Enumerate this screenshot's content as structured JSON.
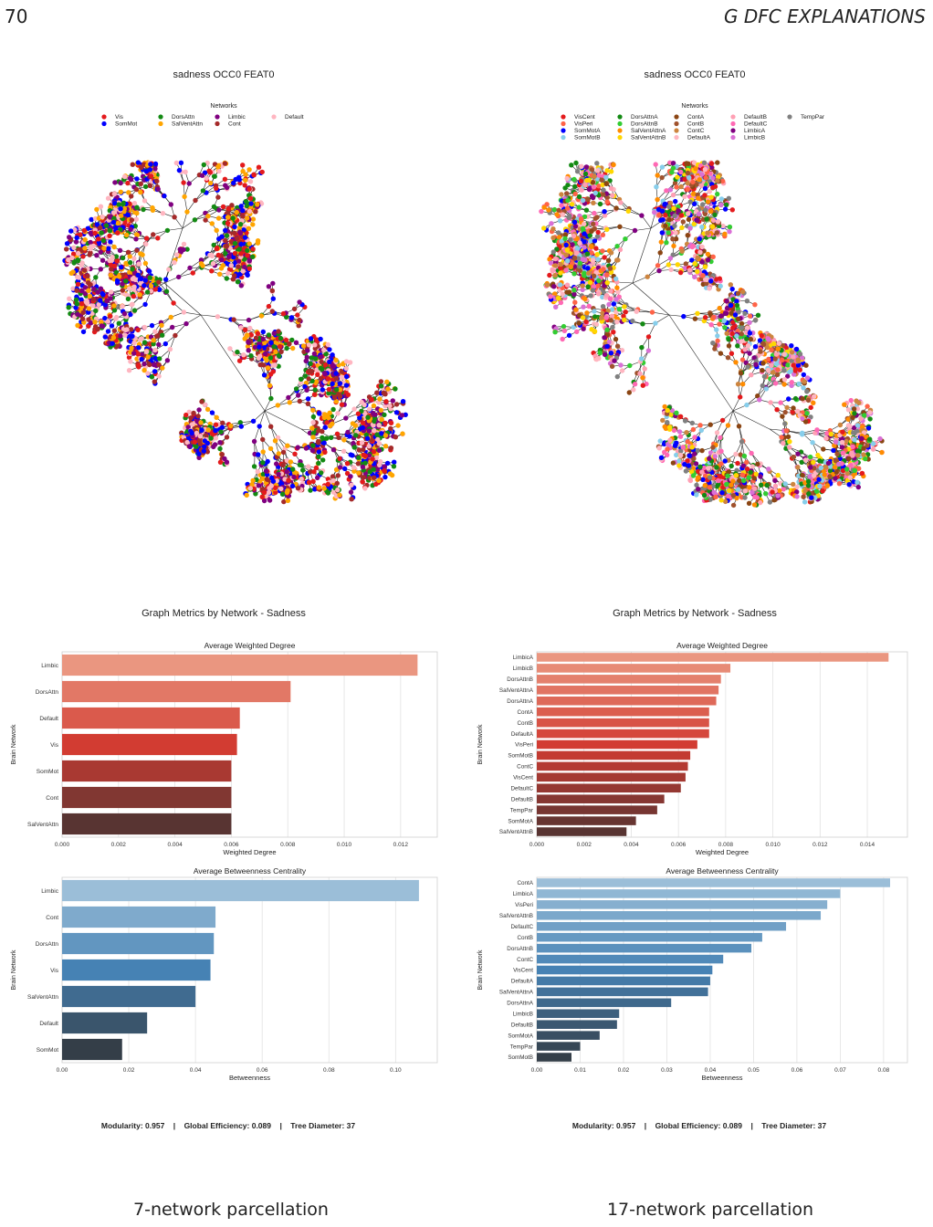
{
  "header": {
    "page_number": "70",
    "section": "G   DFC EXPLANATIONS"
  },
  "panels": [
    {
      "id": "left",
      "tree_title": "sadness OCC0 FEAT0",
      "legend_title": "Networks",
      "legend": [
        {
          "name": "Vis",
          "color": "#e41a1c"
        },
        {
          "name": "SomMot",
          "color": "#0000ff"
        },
        {
          "name": "DorsAttn",
          "color": "#138a13"
        },
        {
          "name": "SalVentAttn",
          "color": "#ffa500"
        },
        {
          "name": "Limbic",
          "color": "#800080"
        },
        {
          "name": "Cont",
          "color": "#a52a2a"
        },
        {
          "name": "Default",
          "color": "#ffb6c1"
        }
      ],
      "metrics_title": "Graph Metrics by Network - Sadness",
      "metrics_footer": "Modularity: 0.957    |    Global Efficiency: 0.089    |    Tree Diameter: 37",
      "caption": "7-network parcellation"
    },
    {
      "id": "right",
      "tree_title": "sadness OCC0 FEAT0",
      "legend_title": "Networks",
      "legend": [
        {
          "name": "VisCent",
          "color": "#e41a1c"
        },
        {
          "name": "VisPeri",
          "color": "#ff6347"
        },
        {
          "name": "SomMotA",
          "color": "#0000ff"
        },
        {
          "name": "SomMotB",
          "color": "#87ceeb"
        },
        {
          "name": "DorsAttnA",
          "color": "#138a13"
        },
        {
          "name": "DorsAttnB",
          "color": "#32cd32"
        },
        {
          "name": "SalVentAttnA",
          "color": "#ff8c00"
        },
        {
          "name": "SalVentAttnB",
          "color": "#ffd700"
        },
        {
          "name": "ContA",
          "color": "#8b4513"
        },
        {
          "name": "ContB",
          "color": "#a0522d"
        },
        {
          "name": "ContC",
          "color": "#cd853f"
        },
        {
          "name": "DefaultA",
          "color": "#ffb6c1"
        },
        {
          "name": "DefaultB",
          "color": "#ffa0b4"
        },
        {
          "name": "DefaultC",
          "color": "#ff69b4"
        },
        {
          "name": "LimbicA",
          "color": "#800080"
        },
        {
          "name": "LimbicB",
          "color": "#da70d6"
        },
        {
          "name": "TempPar",
          "color": "#808080"
        }
      ],
      "metrics_title": "Graph Metrics by Network - Sadness",
      "metrics_footer": "Modularity: 0.957    |    Global Efficiency: 0.089    |    Tree Diameter: 37",
      "caption": "17-network parcellation"
    }
  ],
  "chart_data": [
    {
      "type": "bar",
      "orientation": "horizontal",
      "title": "Average Weighted Degree",
      "xlabel": "Weighted Degree",
      "ylabel": "Brain Network",
      "categories": [
        "Limbic",
        "DorsAttn",
        "Default",
        "Vis",
        "SomMot",
        "Cont",
        "SalVentAttn"
      ],
      "values": [
        0.0126,
        0.0081,
        0.0063,
        0.0062,
        0.006,
        0.006,
        0.006
      ],
      "xlim": [
        0,
        0.0133
      ],
      "xticks": [
        "0.000",
        "0.002",
        "0.004",
        "0.006",
        "0.008",
        "0.010",
        "0.012"
      ],
      "palette": "red"
    },
    {
      "type": "bar",
      "orientation": "horizontal",
      "title": "Average Betweenness Centrality",
      "xlabel": "Betweenness",
      "ylabel": "Brain Network",
      "categories": [
        "Limbic",
        "Cont",
        "DorsAttn",
        "Vis",
        "SalVentAttn",
        "Default",
        "SomMot"
      ],
      "values": [
        0.107,
        0.046,
        0.0455,
        0.0445,
        0.04,
        0.0255,
        0.018
      ],
      "xlim": [
        0,
        0.1125
      ],
      "xticks": [
        "0.00",
        "0.02",
        "0.04",
        "0.06",
        "0.08",
        "0.10"
      ],
      "palette": "blue"
    },
    {
      "type": "bar",
      "orientation": "horizontal",
      "title": "Average Weighted Degree",
      "xlabel": "Weighted Degree",
      "ylabel": "Brain Network",
      "categories": [
        "LimbicA",
        "LimbicB",
        "DorsAttnB",
        "SalVentAttnA",
        "DorsAttnA",
        "ContA",
        "ContB",
        "DefaultA",
        "VisPeri",
        "SomMotB",
        "ContC",
        "VisCent",
        "DefaultC",
        "DefaultB",
        "TempPar",
        "SomMotA",
        "SalVentAttnB"
      ],
      "values": [
        0.0149,
        0.0082,
        0.0078,
        0.0077,
        0.0076,
        0.0073,
        0.0073,
        0.0073,
        0.0068,
        0.0065,
        0.0064,
        0.0063,
        0.0061,
        0.0054,
        0.0051,
        0.0042,
        0.0038
      ],
      "xlim": [
        0,
        0.0157
      ],
      "xticks": [
        "0.000",
        "0.002",
        "0.004",
        "0.006",
        "0.008",
        "0.010",
        "0.012",
        "0.014"
      ],
      "palette": "red"
    },
    {
      "type": "bar",
      "orientation": "horizontal",
      "title": "Average Betweenness Centrality",
      "xlabel": "Betweenness",
      "ylabel": "Brain Network",
      "categories": [
        "ContA",
        "LimbicA",
        "VisPeri",
        "SalVentAttnB",
        "DefaultC",
        "ContB",
        "DorsAttnB",
        "ContC",
        "VisCent",
        "DefaultA",
        "SalVentAttnA",
        "DorsAttnA",
        "LimbicB",
        "DefaultB",
        "SomMotA",
        "TempPar",
        "SomMotB"
      ],
      "values": [
        0.0815,
        0.07,
        0.067,
        0.0655,
        0.0575,
        0.052,
        0.0495,
        0.043,
        0.0405,
        0.04,
        0.0395,
        0.031,
        0.019,
        0.0185,
        0.0145,
        0.01,
        0.008
      ],
      "xlim": [
        0,
        0.0855
      ],
      "xticks": [
        "0.00",
        "0.01",
        "0.02",
        "0.03",
        "0.04",
        "0.05",
        "0.06",
        "0.07",
        "0.08"
      ],
      "palette": "blue"
    }
  ]
}
